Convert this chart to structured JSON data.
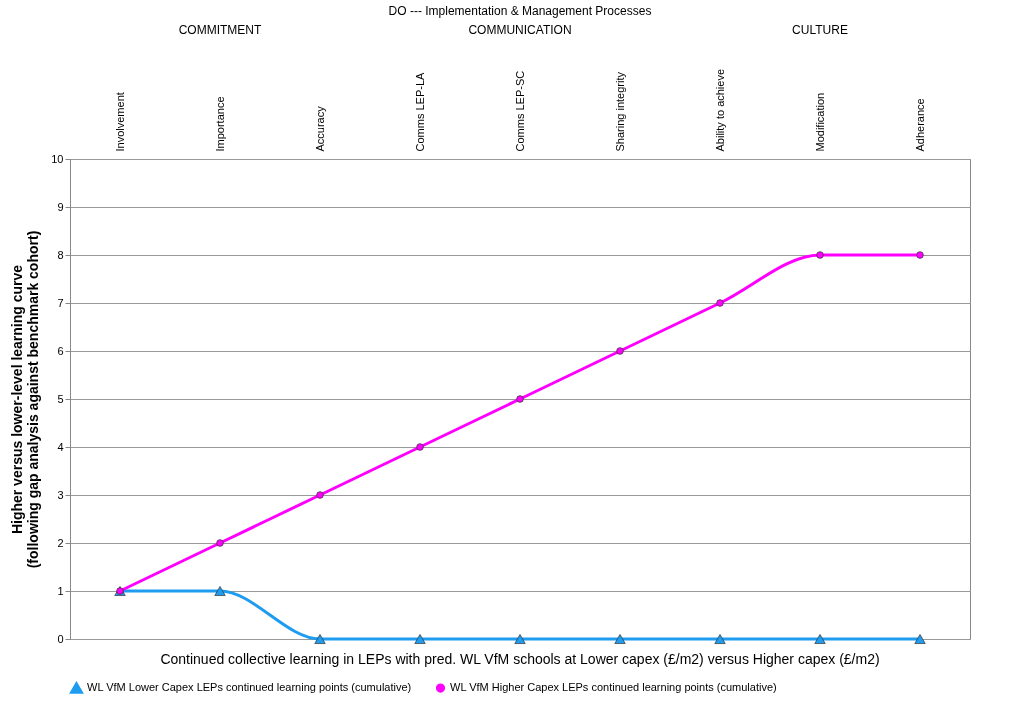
{
  "chart_data": {
    "type": "line",
    "title": "DO --- Implementation & Management Processes",
    "annotations": [
      "COMMITMENT",
      "COMMUNICATION",
      "CULTURE"
    ],
    "categories": [
      "Involvement",
      "Importance",
      "Accuracy",
      "Comms LEP-LA",
      "Comms LEP-SC",
      "Sharing integrity",
      "Ability to achieve",
      "Modification",
      "Adherance"
    ],
    "xlabel": "Continued collective learning in LEPs with pred. WL VfM schools at Lower capex (£/m2) versus Higher capex (£/m2)",
    "ylabel": "Higher versus lower-level learning curve\n(following gap analysis against benchmark cohort)",
    "ylim": [
      0,
      10
    ],
    "yticks": [
      0,
      1,
      2,
      3,
      4,
      5,
      6,
      7,
      8,
      9,
      10
    ],
    "grid": "y",
    "legend": "bottom",
    "series": [
      {
        "name": "WL VfM Lower Capex LEPs continued learning points (cumulative)",
        "color": "#1e9cf0",
        "marker": "triangle",
        "values": [
          1,
          1,
          0,
          0,
          0,
          0,
          0,
          0,
          0
        ]
      },
      {
        "name": "WL VfM Higher Capex LEPs continued learning points (cumulative)",
        "color": "#ff00ff",
        "marker": "circle",
        "values": [
          1,
          2,
          3,
          4,
          5,
          6,
          7,
          8,
          8
        ]
      }
    ]
  }
}
